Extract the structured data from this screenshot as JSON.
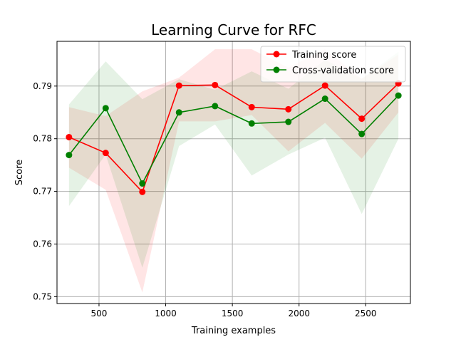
{
  "chart_data": {
    "type": "line",
    "title": "Learning Curve for RFC",
    "xlabel": "Training examples",
    "ylabel": "Score",
    "xlim": [
      185,
      2835
    ],
    "ylim": [
      0.7487,
      0.7985
    ],
    "grid": true,
    "legend_position": "top-right",
    "xticks": [
      {
        "value": 500,
        "label": "500"
      },
      {
        "value": 1000,
        "label": "1000"
      },
      {
        "value": 1500,
        "label": "1500"
      },
      {
        "value": 2000,
        "label": "2000"
      },
      {
        "value": 2500,
        "label": "2500"
      }
    ],
    "yticks": [
      {
        "value": 0.75,
        "label": "0.75"
      },
      {
        "value": 0.76,
        "label": "0.76"
      },
      {
        "value": 0.77,
        "label": "0.77"
      },
      {
        "value": 0.78,
        "label": "0.78"
      },
      {
        "value": 0.79,
        "label": "0.79"
      }
    ],
    "x": [
      275,
      550,
      825,
      1100,
      1370,
      1645,
      1920,
      2195,
      2470,
      2745
    ],
    "series": [
      {
        "name": "Training score",
        "color": "#ff0000",
        "band_color": "#ff0000",
        "values": [
          0.7803,
          0.7773,
          0.7699,
          0.7901,
          0.7902,
          0.786,
          0.7856,
          0.7901,
          0.7838,
          0.7905
        ],
        "upper": [
          0.786,
          0.7843,
          0.789,
          0.7916,
          0.797,
          0.797,
          0.7935,
          0.797,
          0.7914,
          0.796
        ],
        "lower": [
          0.7745,
          0.7703,
          0.7508,
          0.7833,
          0.7833,
          0.7845,
          0.7776,
          0.783,
          0.7762,
          0.785
        ]
      },
      {
        "name": "Cross-validation score",
        "color": "#008000",
        "band_color": "#008000",
        "values": [
          0.7769,
          0.7858,
          0.7715,
          0.785,
          0.7862,
          0.7829,
          0.7832,
          0.7876,
          0.7809,
          0.7882
        ],
        "upper": [
          0.7865,
          0.7947,
          0.7875,
          0.7913,
          0.7893,
          0.7928,
          0.7895,
          0.795,
          0.7914,
          0.7965
        ],
        "lower": [
          0.7672,
          0.777,
          0.7555,
          0.7786,
          0.7827,
          0.773,
          0.777,
          0.7802,
          0.7657,
          0.78
        ]
      }
    ]
  }
}
